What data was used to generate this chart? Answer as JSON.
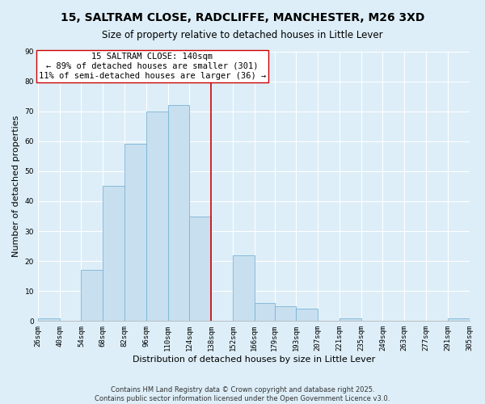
{
  "title": "15, SALTRAM CLOSE, RADCLIFFE, MANCHESTER, M26 3XD",
  "subtitle": "Size of property relative to detached houses in Little Lever",
  "xlabel": "Distribution of detached houses by size in Little Lever",
  "ylabel": "Number of detached properties",
  "bin_edges": [
    26,
    40,
    54,
    68,
    82,
    96,
    110,
    124,
    138,
    152,
    166,
    179,
    193,
    207,
    221,
    235,
    249,
    263,
    277,
    291,
    305
  ],
  "bar_heights": [
    1,
    0,
    17,
    45,
    59,
    70,
    72,
    35,
    0,
    22,
    6,
    5,
    4,
    0,
    1,
    0,
    0,
    0,
    0,
    1
  ],
  "bar_color": "#c8dff0",
  "bar_edge_color": "#7ab4d4",
  "vline_x": 138,
  "vline_color": "#cc0000",
  "annotation_title": "15 SALTRAM CLOSE: 140sqm",
  "annotation_line1": "← 89% of detached houses are smaller (301)",
  "annotation_line2": "11% of semi-detached houses are larger (36) →",
  "annotation_box_color": "#ffffff",
  "annotation_box_edge": "#cc0000",
  "ylim": [
    0,
    90
  ],
  "yticks": [
    0,
    10,
    20,
    30,
    40,
    50,
    60,
    70,
    80,
    90
  ],
  "tick_labels": [
    "26sqm",
    "40sqm",
    "54sqm",
    "68sqm",
    "82sqm",
    "96sqm",
    "110sqm",
    "124sqm",
    "138sqm",
    "152sqm",
    "166sqm",
    "179sqm",
    "193sqm",
    "207sqm",
    "221sqm",
    "235sqm",
    "249sqm",
    "263sqm",
    "277sqm",
    "291sqm",
    "305sqm"
  ],
  "footnote1": "Contains HM Land Registry data © Crown copyright and database right 2025.",
  "footnote2": "Contains public sector information licensed under the Open Government Licence v3.0.",
  "bg_color": "#ddeef8",
  "grid_color": "#ffffff",
  "title_fontsize": 10,
  "subtitle_fontsize": 8.5,
  "axis_label_fontsize": 8,
  "tick_fontsize": 6.5,
  "annotation_fontsize": 7.5,
  "footnote_fontsize": 6
}
